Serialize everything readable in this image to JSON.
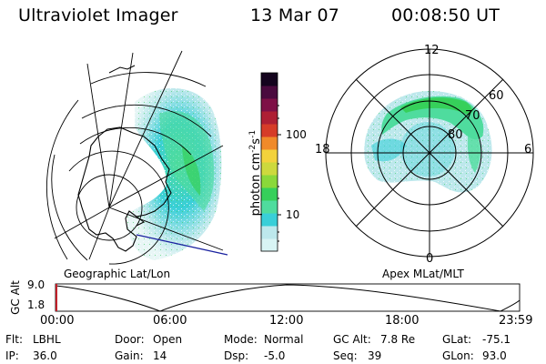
{
  "header": {
    "instrument": "Ultraviolet Imager",
    "date": "13 Mar 07",
    "time": "00:08:50 UT"
  },
  "left_panel": {
    "caption": "Geographic Lat/Lon"
  },
  "right_panel": {
    "caption": "Apex MLat/MLT",
    "mlt_labels": {
      "top": "12",
      "left": "18",
      "right": "6",
      "bottom": "0"
    },
    "mlat_labels": [
      "60",
      "70",
      "80"
    ]
  },
  "colorbar": {
    "unit_main": "photon cm",
    "unit_exp1": "-2",
    "unit_s": "s",
    "unit_exp2": "-1",
    "scale": "log",
    "ticks": [
      "100",
      "10"
    ],
    "colors": [
      "#d8f4f4",
      "#bde8ec",
      "#39cfd8",
      "#4fdc9e",
      "#36d05a",
      "#8ad83a",
      "#cdd93d",
      "#f3d23c",
      "#f08a2a",
      "#d63c28",
      "#ae1f34",
      "#7e1046",
      "#4a0a3e",
      "#14041e"
    ]
  },
  "altitude_plot": {
    "ylabel": "GC Alt",
    "y_ticks": [
      "9.0",
      "1.8"
    ],
    "x_ticks": [
      "00:00",
      "06:00",
      "12:00",
      "18:00",
      "23:59"
    ]
  },
  "info": {
    "row1": [
      {
        "label": "Flt:",
        "value": "LBHL"
      },
      {
        "label": "Door:",
        "value": "Open"
      },
      {
        "label": "Mode:",
        "value": "Normal"
      },
      {
        "label": "GC Alt:",
        "value": "7.8 Re"
      },
      {
        "label": "GLat:",
        "value": "-75.1"
      }
    ],
    "row2": [
      {
        "label": "IP:",
        "value": "36.0"
      },
      {
        "label": "Gain:",
        "value": "14"
      },
      {
        "label": "Dsp:",
        "value": "-5.0"
      },
      {
        "label": "Seq:",
        "value": "39"
      },
      {
        "label": "GLon:",
        "value": "93.0"
      }
    ]
  }
}
